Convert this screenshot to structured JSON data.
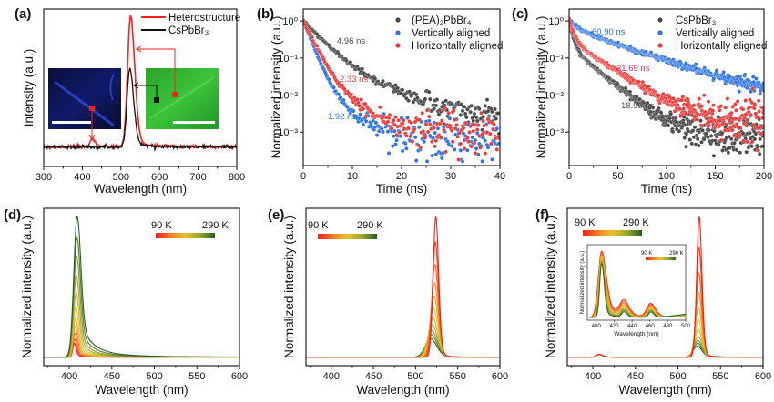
{
  "colors": {
    "red": "#ff1f1f",
    "black": "#111111",
    "gray": "#4a4a4a",
    "blue": "#2f74e0",
    "hred": "#ee3a3a",
    "magenta": "#e0287a",
    "cmap": [
      "#ff1a1a",
      "#f07f20",
      "#e8c22a",
      "#9aa52e",
      "#245f28"
    ]
  },
  "chart_data": [
    {
      "id": "a",
      "panel_label": "(a)",
      "type": "line",
      "xlabel": "Wavelength (nm)",
      "ylabel": "Intensity (a.u.)",
      "xlim": [
        300,
        800
      ],
      "ylim": [
        -0.15,
        1.05
      ],
      "xticks": [
        300,
        400,
        500,
        600,
        700,
        800
      ],
      "series": [
        {
          "name": "Heterostructure",
          "color": "#ff1f1f",
          "peaks": [
            {
              "center": 525,
              "amp": 1.0,
              "width": 11
            },
            {
              "center": 425,
              "amp": 0.06,
              "width": 8
            }
          ]
        },
        {
          "name": "CsPbBr₃",
          "color": "#111111",
          "peaks": [
            {
              "center": 523,
              "amp": 0.6,
              "width": 10
            }
          ]
        }
      ],
      "legend": "top-right",
      "insets": [
        "blue PL image with scale bar",
        "green PL image with scale bar"
      ]
    },
    {
      "id": "b",
      "panel_label": "(b)",
      "type": "scatter",
      "xlabel": "Time (ns)",
      "ylabel": "Normalized intensity (a.u.)",
      "xlim": [
        0,
        40
      ],
      "ylim": [
        0.000125,
        2.1
      ],
      "yscale": "log",
      "xticks": [
        0,
        10,
        20,
        30,
        40
      ],
      "yticks": [
        {
          "v": 1,
          "label": "10⁰"
        },
        {
          "v": 0.1,
          "label": "10⁻¹"
        },
        {
          "v": 0.01,
          "label": "10⁻²"
        },
        {
          "v": 0.001,
          "label": "10⁻³"
        }
      ],
      "series": [
        {
          "name": "(PEA)₂PbBr₄",
          "color": "#4a4a4a",
          "lifetime": "4.96 ns",
          "model": {
            "a": 0.9,
            "t1": 3,
            "t2": 8,
            "floor": 0.002
          }
        },
        {
          "name": "Vertically aligned",
          "color": "#2f74e0",
          "lifetime": "1.92 ns",
          "model": {
            "a": 0.97,
            "t1": 1.3,
            "t2": 4,
            "floor": 0.0006
          }
        },
        {
          "name": "Horizontally aligned",
          "color": "#ee3a3a",
          "lifetime": "2.33 ns",
          "model": {
            "a": 0.95,
            "t1": 1.6,
            "t2": 4.5,
            "floor": 0.001
          }
        }
      ],
      "tmax": 40,
      "dt": 0.2,
      "legend": "top-right"
    },
    {
      "id": "c",
      "panel_label": "(c)",
      "type": "scatter",
      "xlabel": "Time (ns)",
      "ylabel": "Normalized intensity (a.u.)",
      "xlim": [
        0,
        200
      ],
      "ylim": [
        0.000125,
        2.1
      ],
      "yscale": "log",
      "xticks": [
        0,
        50,
        100,
        150,
        200
      ],
      "yticks": [
        {
          "v": 1,
          "label": "10⁰"
        },
        {
          "v": 0.1,
          "label": "10⁻¹"
        },
        {
          "v": 0.01,
          "label": "10⁻²"
        },
        {
          "v": 0.001,
          "label": "10⁻³"
        }
      ],
      "series": [
        {
          "name": "CsPbBr₃",
          "color": "#4a4a4a",
          "lifetime": "18.93 ns",
          "model": {
            "a": 0.8,
            "t1": 3,
            "t2": 20,
            "floor": 0.0008
          }
        },
        {
          "name": "Vertically aligned",
          "color": "#2f74e0",
          "lifetime": "60.90 ns",
          "model": {
            "a": 0.4,
            "t1": 10,
            "t2": 50,
            "floor": 0.005
          }
        },
        {
          "name": "Horizontally aligned",
          "color": "#ee3a3a",
          "lifetime": "31.69 ns",
          "model": {
            "a": 0.7,
            "t1": 4,
            "t2": 25,
            "floor": 0.002
          }
        }
      ],
      "tmax": 200,
      "dt": 0.5,
      "legend": "top-right"
    },
    {
      "id": "d",
      "panel_label": "(d)",
      "type": "line",
      "xlabel": "Wavelength (nm)",
      "ylabel": "Normalized intensity (a.u.)",
      "xlim": [
        370,
        600
      ],
      "ylim": [
        -0.06,
        1.06
      ],
      "xticks": [
        400,
        450,
        500,
        550,
        600
      ],
      "colorbar": {
        "min_label": "90 K",
        "max_label": "290 K"
      },
      "temperatures_K": [
        90,
        110,
        130,
        150,
        170,
        190,
        210,
        230,
        250,
        270,
        290
      ],
      "amps": [
        0.1,
        0.13,
        0.17,
        0.22,
        0.28,
        0.36,
        0.46,
        0.58,
        0.72,
        0.85,
        1.0
      ],
      "peak_nm": [
        406,
        406.3,
        406.6,
        407,
        407.3,
        407.6,
        408,
        408.3,
        408.6,
        409,
        409.3
      ],
      "width_nm": [
        2.5,
        2.8,
        3.1,
        3.4,
        3.7,
        4.0,
        4.3,
        4.6,
        4.9,
        5.2,
        5.5
      ],
      "tail": [
        6,
        7,
        8,
        9,
        10,
        11,
        12,
        13,
        14,
        16,
        18
      ]
    },
    {
      "id": "e",
      "panel_label": "(e)",
      "type": "line",
      "xlabel": "Wavelength (nm)",
      "ylabel": "Normalized intensity (a.u.)",
      "xlim": [
        370,
        600
      ],
      "ylim": [
        -0.06,
        1.06
      ],
      "xticks": [
        400,
        450,
        500,
        550,
        600
      ],
      "colorbar": {
        "min_label": "90 K",
        "max_label": "290 K"
      },
      "temperatures_K": [
        90,
        110,
        130,
        150,
        170,
        190,
        210,
        230,
        250,
        270,
        290
      ],
      "amps": [
        1.0,
        0.82,
        0.66,
        0.53,
        0.43,
        0.35,
        0.28,
        0.23,
        0.19,
        0.16,
        0.13
      ],
      "peak_nm": [
        524,
        523.5,
        523,
        522.5,
        522,
        521.4,
        520.8,
        520.2,
        519.6,
        519,
        518.4
      ],
      "width_nm": [
        4.5,
        5,
        5.5,
        6,
        6.5,
        7,
        7.5,
        8,
        8.5,
        9,
        9.5
      ],
      "tail": [
        3,
        3,
        3.5,
        3.5,
        4,
        4,
        4.5,
        4.5,
        5,
        5,
        5.5
      ]
    },
    {
      "id": "f",
      "panel_label": "(f)",
      "type": "line",
      "xlabel": "Wavelength (nm)",
      "ylabel": "Normalized intensity (a.u.)",
      "xlim": [
        370,
        600
      ],
      "ylim": [
        -0.06,
        1.06
      ],
      "xticks": [
        400,
        450,
        500,
        550,
        600
      ],
      "colorbar": {
        "min_label": "90 K",
        "max_label": "290 K"
      },
      "temperatures_K": [
        90,
        110,
        130,
        150,
        170,
        190,
        210,
        230,
        250,
        270,
        290
      ],
      "amps": [
        1.0,
        0.78,
        0.6,
        0.46,
        0.35,
        0.27,
        0.2,
        0.15,
        0.12,
        0.1,
        0.08
      ],
      "peak_nm": [
        525,
        524.8,
        524.6,
        524.4,
        524.2,
        524,
        523.8,
        523.6,
        523.4,
        523.2,
        523
      ],
      "width_nm": [
        4.2,
        4.5,
        4.8,
        5.1,
        5.4,
        5.7,
        6,
        6.3,
        6.6,
        6.9,
        7.2
      ],
      "tail": [
        3,
        3,
        3,
        3.5,
        3.5,
        3.5,
        4,
        4,
        4,
        4.5,
        4.5
      ],
      "minor_peak": {
        "center": 407,
        "amp": 0.02
      },
      "inset": {
        "xlabel": "Wavelength (nm)",
        "ylabel": "Normalized intensity (a.u.)",
        "xlim": [
          390,
          500
        ],
        "xticks": [
          400,
          420,
          440,
          460,
          480,
          500
        ],
        "colorbar": {
          "min_label": "90 K",
          "max_label": "290 K"
        },
        "peaks": [
          {
            "center": 406,
            "amp_90K": 1.0,
            "amp_290K": 0.8
          },
          {
            "center": 431,
            "amp_90K": 0.22,
            "amp_290K": 0.08
          },
          {
            "center": 461,
            "amp_90K": 0.2,
            "amp_290K": 0.08
          }
        ]
      }
    }
  ]
}
